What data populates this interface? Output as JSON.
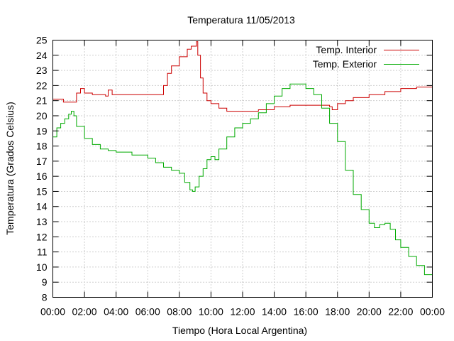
{
  "chart_data": {
    "type": "line",
    "title": "Temperatura 11/05/2013",
    "xlabel": "Tiempo (Hora Local Argentina)",
    "ylabel": "Temperatura (Grados Celsius)",
    "xlim": [
      0,
      24
    ],
    "ylim": [
      8,
      25
    ],
    "x_ticks": [
      "00:00",
      "02:00",
      "04:00",
      "06:00",
      "08:00",
      "10:00",
      "12:00",
      "14:00",
      "16:00",
      "18:00",
      "20:00",
      "22:00",
      "00:00"
    ],
    "y_ticks": [
      "8",
      "9",
      "10",
      "11",
      "12",
      "13",
      "14",
      "15",
      "16",
      "17",
      "18",
      "19",
      "20",
      "21",
      "22",
      "23",
      "24",
      "25"
    ],
    "grid": true,
    "legend_position": "top-right",
    "series": [
      {
        "name": "Temp. Interior",
        "color": "#cc0000",
        "x": [
          "00:00",
          "00:30",
          "00:40",
          "01:10",
          "01:30",
          "01:45",
          "02:00",
          "02:30",
          "03:00",
          "03:20",
          "03:30",
          "03:45",
          "04:00",
          "05:00",
          "06:00",
          "06:45",
          "07:00",
          "07:15",
          "07:30",
          "08:00",
          "08:30",
          "08:45",
          "09:05",
          "09:10",
          "09:20",
          "09:30",
          "09:45",
          "10:00",
          "10:30",
          "11:00",
          "11:30",
          "12:00",
          "13:00",
          "14:00",
          "15:00",
          "16:00",
          "17:00",
          "17:30",
          "17:40",
          "18:00",
          "18:30",
          "19:00",
          "20:00",
          "21:00",
          "22:00",
          "23:00",
          "24:00"
        ],
        "values": [
          21.1,
          21.1,
          20.9,
          20.9,
          21.5,
          21.8,
          21.5,
          21.4,
          21.4,
          21.3,
          21.7,
          21.4,
          21.4,
          21.4,
          21.4,
          21.4,
          22.0,
          22.8,
          23.3,
          23.9,
          24.4,
          24.6,
          24.9,
          24.0,
          22.5,
          21.5,
          21.0,
          20.8,
          20.5,
          20.3,
          20.3,
          20.3,
          20.4,
          20.6,
          20.7,
          20.7,
          20.7,
          20.6,
          20.4,
          20.8,
          21.0,
          21.2,
          21.4,
          21.6,
          21.8,
          21.9,
          22.0
        ]
      },
      {
        "name": "Temp. Exterior",
        "color": "#00aa00",
        "x": [
          "00:00",
          "00:15",
          "00:30",
          "00:45",
          "01:00",
          "01:10",
          "01:20",
          "01:30",
          "02:00",
          "02:30",
          "03:00",
          "03:30",
          "04:00",
          "05:00",
          "06:00",
          "06:30",
          "07:00",
          "07:30",
          "08:00",
          "08:20",
          "08:40",
          "08:50",
          "09:00",
          "09:15",
          "09:30",
          "09:45",
          "10:00",
          "10:15",
          "10:30",
          "11:00",
          "11:30",
          "12:00",
          "12:30",
          "13:00",
          "13:30",
          "14:00",
          "14:30",
          "15:00",
          "15:30",
          "16:00",
          "16:30",
          "17:00",
          "17:30",
          "18:00",
          "18:30",
          "19:00",
          "19:30",
          "20:00",
          "20:20",
          "20:40",
          "21:00",
          "21:20",
          "21:40",
          "22:00",
          "22:30",
          "23:00",
          "23:30",
          "24:00"
        ],
        "values": [
          18.6,
          19.2,
          19.5,
          19.8,
          20.1,
          20.3,
          20.0,
          19.3,
          18.5,
          18.1,
          17.8,
          17.7,
          17.6,
          17.4,
          17.2,
          16.9,
          16.6,
          16.4,
          16.2,
          15.6,
          15.1,
          15.0,
          15.3,
          16.0,
          16.5,
          17.1,
          17.3,
          17.1,
          17.8,
          18.6,
          19.2,
          19.5,
          19.8,
          20.2,
          20.8,
          21.3,
          21.8,
          22.1,
          22.1,
          21.8,
          21.4,
          20.5,
          19.5,
          18.3,
          16.4,
          14.8,
          13.8,
          12.9,
          12.6,
          12.8,
          12.9,
          12.5,
          11.8,
          11.3,
          10.7,
          10.1,
          9.5,
          8.8
        ]
      }
    ]
  }
}
